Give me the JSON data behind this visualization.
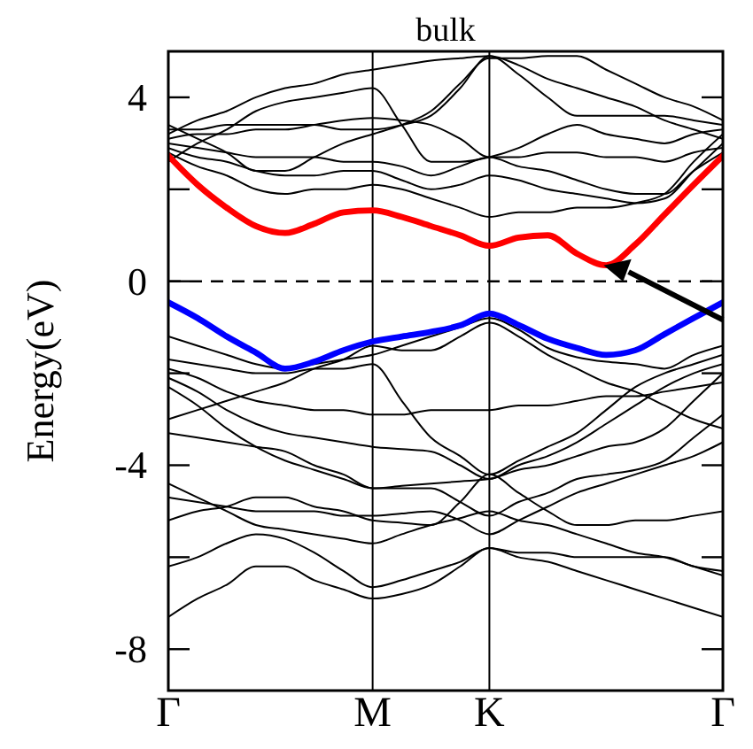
{
  "chart_data": {
    "type": "line",
    "title": "bulk",
    "ylabel": "Energy(eV)",
    "categories": [
      "Γ",
      null,
      null,
      null,
      null,
      null,
      null,
      "M",
      null,
      null,
      null,
      "K",
      null,
      null,
      null,
      null,
      null,
      null,
      null,
      "Γ"
    ],
    "ylim": [
      -8.9,
      5
    ],
    "yticks": [
      -8,
      {
        "value": -6,
        "label": null
      },
      -4,
      {
        "value": -2,
        "label": null
      },
      0,
      {
        "value": 2,
        "label": null
      },
      4
    ],
    "grid": "x",
    "ref_lines": [
      {
        "axis": "y",
        "value": 0,
        "line_style": "dashed",
        "color": "#000000"
      }
    ],
    "series": [
      {
        "color": "#000000",
        "values": [
          2.8,
          2.5,
          2.3,
          2.0,
          1.9,
          2.0,
          2.0,
          2.1,
          2.0,
          1.8,
          1.6,
          1.4,
          1.5,
          1.5,
          1.6,
          1.6,
          1.7,
          1.9,
          2.6,
          3.2
        ]
      },
      {
        "color": "#000000",
        "values": [
          2.9,
          2.7,
          2.6,
          2.4,
          2.3,
          2.3,
          2.4,
          2.4,
          2.2,
          2.0,
          2.1,
          2.3,
          2.2,
          2.0,
          1.9,
          1.8,
          1.7,
          1.8,
          2.4,
          3.0
        ]
      },
      {
        "color": "#000000",
        "values": [
          3.0,
          2.9,
          2.8,
          2.7,
          2.7,
          2.7,
          2.6,
          2.6,
          2.5,
          2.3,
          2.5,
          2.7,
          2.5,
          2.4,
          2.2,
          2.0,
          1.9,
          1.9,
          2.4,
          2.8
        ]
      },
      {
        "color": "#000000",
        "values": [
          3.1,
          3.2,
          3.2,
          3.3,
          3.3,
          3.4,
          3.5,
          3.55,
          3.5,
          3.4,
          3.1,
          2.7,
          2.7,
          2.8,
          2.8,
          2.7,
          2.7,
          2.6,
          2.8,
          2.9
        ]
      },
      {
        "color": "#000000",
        "values": [
          3.2,
          3.5,
          3.7,
          4.0,
          4.2,
          4.3,
          4.5,
          4.6,
          4.7,
          4.8,
          4.85,
          4.9,
          4.7,
          4.4,
          4.2,
          4.0,
          3.8,
          3.5,
          3.3,
          3.1
        ]
      },
      {
        "color": "#000000",
        "values": [
          3.3,
          3.3,
          3.4,
          3.4,
          3.4,
          3.4,
          3.3,
          3.3,
          3.4,
          3.6,
          4.2,
          4.9,
          4.5,
          4.0,
          3.6,
          3.6,
          3.6,
          3.6,
          3.5,
          3.4
        ]
      },
      {
        "color": "#000000",
        "values": [
          3.4,
          3.1,
          2.8,
          2.4,
          2.4,
          2.7,
          3.0,
          3.2,
          3.4,
          3.7,
          4.3,
          4.85,
          4.85,
          4.9,
          4.9,
          4.6,
          4.3,
          4.0,
          3.8,
          3.5
        ]
      },
      {
        "color": "#000000",
        "values": [
          2.6,
          3.0,
          3.3,
          3.7,
          3.9,
          4.0,
          4.1,
          4.2,
          3.4,
          2.6,
          2.6,
          2.7,
          2.9,
          3.2,
          3.4,
          3.2,
          3.1,
          3.0,
          3.2,
          3.3
        ]
      },
      {
        "color": "#000000",
        "values": [
          -1.2,
          -1.4,
          -1.6,
          -1.8,
          -1.9,
          -1.8,
          -1.7,
          -1.6,
          -1.4,
          -1.2,
          -1.0,
          -0.8,
          -1.05,
          -1.45,
          -1.65,
          -1.75,
          -1.8,
          -1.9,
          -1.6,
          -1.4
        ]
      },
      {
        "color": "#000000",
        "values": [
          -1.7,
          -1.8,
          -1.9,
          -2.0,
          -2.0,
          -1.9,
          -1.9,
          -1.8,
          -2.6,
          -3.4,
          -3.8,
          -4.2,
          -3.9,
          -3.6,
          -3.3,
          -2.8,
          -2.3,
          -2.0,
          -1.8,
          -1.6
        ]
      },
      {
        "color": "#000000",
        "values": [
          -1.9,
          -2.1,
          -2.4,
          -2.6,
          -2.7,
          -2.8,
          -2.8,
          -2.9,
          -2.9,
          -2.8,
          -2.8,
          -2.8,
          -2.7,
          -2.7,
          -2.6,
          -2.5,
          -2.5,
          -2.4,
          -2.3,
          -2.2
        ]
      },
      {
        "color": "#000000",
        "values": [
          -3.0,
          -2.8,
          -2.6,
          -2.4,
          -2.2,
          -1.9,
          -1.7,
          -1.4,
          -1.5,
          -1.5,
          -1.2,
          -0.9,
          -1.2,
          -1.6,
          -1.9,
          -2.2,
          -2.4,
          -2.7,
          -3.0,
          -3.2
        ]
      },
      {
        "color": "#000000",
        "values": [
          -2.1,
          -2.4,
          -2.8,
          -3.1,
          -3.3,
          -3.4,
          -3.5,
          -3.6,
          -3.65,
          -3.7,
          -4.0,
          -4.3,
          -4.0,
          -3.8,
          -3.5,
          -3.1,
          -2.7,
          -2.3,
          -2.0,
          -1.8
        ]
      },
      {
        "color": "#000000",
        "values": [
          -2.3,
          -2.7,
          -3.2,
          -3.6,
          -3.9,
          -4.1,
          -4.3,
          -4.5,
          -4.45,
          -4.4,
          -4.35,
          -4.3,
          -4.1,
          -4.0,
          -3.8,
          -3.6,
          -3.5,
          -3.2,
          -2.6,
          -2.0
        ]
      },
      {
        "color": "#000000",
        "values": [
          -3.3,
          -3.4,
          -3.5,
          -3.6,
          -3.7,
          -4.0,
          -4.2,
          -4.5,
          -4.5,
          -4.5,
          -4.8,
          -5.1,
          -4.8,
          -4.6,
          -4.3,
          -4.2,
          -4.1,
          -3.9,
          -3.4,
          -2.9
        ]
      },
      {
        "color": "#000000",
        "values": [
          -4.7,
          -4.8,
          -4.9,
          -5.0,
          -5.0,
          -5.0,
          -5.1,
          -5.1,
          -5.05,
          -5.0,
          -5.2,
          -5.5,
          -5.2,
          -4.9,
          -4.6,
          -4.4,
          -4.2,
          -4.0,
          -3.8,
          -3.5
        ]
      },
      {
        "color": "#000000",
        "values": [
          -5.2,
          -5.0,
          -4.9,
          -4.7,
          -4.7,
          -4.9,
          -5.0,
          -5.2,
          -5.25,
          -5.3,
          -4.8,
          -4.2,
          -4.6,
          -5.0,
          -5.3,
          -5.3,
          -5.2,
          -5.2,
          -5.1,
          -5.0
        ]
      },
      {
        "color": "#000000",
        "values": [
          -6.2,
          -6.0,
          -5.7,
          -5.5,
          -5.6,
          -5.9,
          -6.3,
          -6.65,
          -6.5,
          -6.3,
          -6.1,
          -5.8,
          -5.9,
          -5.9,
          -6.0,
          -6.0,
          -6.0,
          -6.0,
          -6.2,
          -6.3
        ]
      },
      {
        "color": "#000000",
        "values": [
          -7.3,
          -6.9,
          -6.6,
          -6.2,
          -6.2,
          -6.5,
          -6.7,
          -6.9,
          -6.8,
          -6.6,
          -6.2,
          -5.8,
          -6.0,
          -6.1,
          -6.3,
          -6.5,
          -6.7,
          -6.9,
          -7.1,
          -7.3
        ]
      },
      {
        "color": "#000000",
        "values": [
          -4.4,
          -4.7,
          -5.0,
          -5.3,
          -5.4,
          -5.5,
          -5.6,
          -5.7,
          -5.5,
          -5.3,
          -5.15,
          -5.0,
          -5.2,
          -5.3,
          -5.5,
          -5.7,
          -5.9,
          -6.0,
          -6.2,
          -6.4
        ]
      },
      {
        "color": "#ff0000",
        "values": [
          2.73,
          2.1,
          1.6,
          1.2,
          1.05,
          1.25,
          1.5,
          1.54,
          1.4,
          1.2,
          1.0,
          0.77,
          0.95,
          1.0,
          0.6,
          0.35,
          0.8,
          1.45,
          2.1,
          2.73
        ]
      },
      {
        "color": "#0000ff",
        "values": [
          -0.46,
          -0.8,
          -1.2,
          -1.55,
          -1.9,
          -1.75,
          -1.5,
          -1.31,
          -1.2,
          -1.1,
          -0.96,
          -0.7,
          -0.95,
          -1.25,
          -1.45,
          -1.6,
          -1.5,
          -1.15,
          -0.8,
          -0.46
        ]
      }
    ]
  }
}
